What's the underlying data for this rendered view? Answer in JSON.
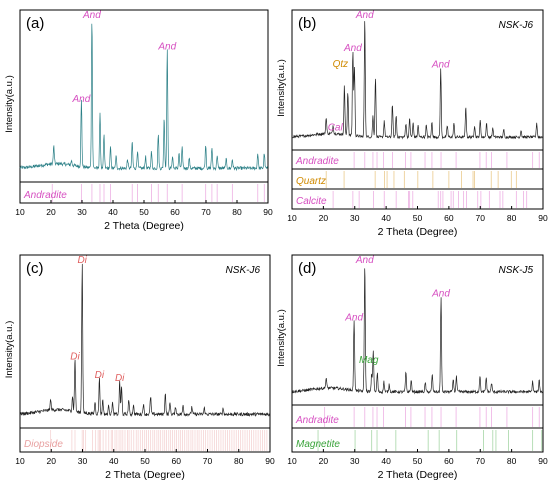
{
  "chart_data": [
    {
      "type": "line",
      "panel_label": "(a)",
      "sample": "",
      "xlabel": "2 Theta (Degree)",
      "ylabel": "Intensity(a.u.)",
      "xlim": [
        10,
        90
      ],
      "x_ticks": [
        10,
        20,
        30,
        40,
        50,
        60,
        70,
        80,
        90
      ],
      "pattern_color": "#2a7f86",
      "peaks": [
        {
          "x": 20.9,
          "y": 0.12
        },
        {
          "x": 26.6,
          "y": 0.03
        },
        {
          "x": 29.8,
          "y": 0.44
        },
        {
          "x": 33.2,
          "y": 1.0
        },
        {
          "x": 35.8,
          "y": 0.36
        },
        {
          "x": 37.1,
          "y": 0.22
        },
        {
          "x": 39.2,
          "y": 0.14
        },
        {
          "x": 41.0,
          "y": 0.08
        },
        {
          "x": 44.7,
          "y": 0.06
        },
        {
          "x": 46.2,
          "y": 0.18
        },
        {
          "x": 47.9,
          "y": 0.12
        },
        {
          "x": 50.5,
          "y": 0.08
        },
        {
          "x": 52.4,
          "y": 0.11
        },
        {
          "x": 54.6,
          "y": 0.23
        },
        {
          "x": 56.5,
          "y": 0.34
        },
        {
          "x": 57.5,
          "y": 0.79
        },
        {
          "x": 59.2,
          "y": 0.08
        },
        {
          "x": 61.3,
          "y": 0.1
        },
        {
          "x": 62.3,
          "y": 0.14
        },
        {
          "x": 64.6,
          "y": 0.07
        },
        {
          "x": 69.9,
          "y": 0.16
        },
        {
          "x": 71.9,
          "y": 0.14
        },
        {
          "x": 73.6,
          "y": 0.09
        },
        {
          "x": 76.5,
          "y": 0.06
        },
        {
          "x": 78.5,
          "y": 0.06
        },
        {
          "x": 86.7,
          "y": 0.1
        },
        {
          "x": 88.8,
          "y": 0.1
        }
      ],
      "annotations": [
        {
          "text": "And",
          "x": 29.8,
          "color": "#d64fc1"
        },
        {
          "text": "And",
          "x": 33.2,
          "color": "#d64fc1"
        },
        {
          "text": "And",
          "x": 57.5,
          "color": "#d64fc1"
        }
      ],
      "reference_phases": [
        {
          "name": "Andradite",
          "color": "#d64fc1",
          "lines": [
            20.4,
            29.8,
            33.2,
            35.8,
            37.1,
            39.2,
            46.2,
            47.9,
            52.4,
            54.6,
            57.5,
            62.3,
            69.9,
            71.9,
            73.6,
            78.5,
            86.7,
            88.8
          ]
        }
      ]
    },
    {
      "type": "line",
      "panel_label": "(b)",
      "sample": "NSK-J6",
      "xlabel": "2 Theta (Degree)",
      "ylabel": "Intensity(a.u.)",
      "xlim": [
        10,
        90
      ],
      "x_ticks": [
        10,
        20,
        30,
        40,
        50,
        60,
        70,
        80,
        90
      ],
      "pattern_color": "#222222",
      "peaks": [
        {
          "x": 20.9,
          "y": 0.14
        },
        {
          "x": 23.1,
          "y": 0.07
        },
        {
          "x": 26.7,
          "y": 0.42
        },
        {
          "x": 27.8,
          "y": 0.37
        },
        {
          "x": 29.4,
          "y": 0.72
        },
        {
          "x": 29.9,
          "y": 0.58
        },
        {
          "x": 33.2,
          "y": 1.0
        },
        {
          "x": 35.8,
          "y": 0.18
        },
        {
          "x": 36.6,
          "y": 0.5
        },
        {
          "x": 39.4,
          "y": 0.14
        },
        {
          "x": 42.0,
          "y": 0.28
        },
        {
          "x": 43.2,
          "y": 0.18
        },
        {
          "x": 46.3,
          "y": 0.12
        },
        {
          "x": 47.5,
          "y": 0.16
        },
        {
          "x": 48.6,
          "y": 0.12
        },
        {
          "x": 50.2,
          "y": 0.1
        },
        {
          "x": 52.8,
          "y": 0.1
        },
        {
          "x": 54.6,
          "y": 0.13
        },
        {
          "x": 57.4,
          "y": 0.58
        },
        {
          "x": 59.5,
          "y": 0.1
        },
        {
          "x": 61.6,
          "y": 0.12
        },
        {
          "x": 65.4,
          "y": 0.26
        },
        {
          "x": 68.2,
          "y": 0.1
        },
        {
          "x": 70.0,
          "y": 0.14
        },
        {
          "x": 72.0,
          "y": 0.12
        },
        {
          "x": 74.0,
          "y": 0.08
        },
        {
          "x": 77.5,
          "y": 0.06
        },
        {
          "x": 83.0,
          "y": 0.06
        },
        {
          "x": 88.0,
          "y": 0.12
        }
      ],
      "annotations": [
        {
          "text": "And",
          "x": 29.4,
          "color": "#d64fc1"
        },
        {
          "text": "And",
          "x": 33.2,
          "color": "#d64fc1"
        },
        {
          "text": "And",
          "x": 57.4,
          "color": "#d64fc1"
        },
        {
          "text": "Qtz",
          "x": 26.7,
          "color": "#d08a00"
        },
        {
          "text": "Cal",
          "x": 22.5,
          "color": "#d64fc1"
        }
      ],
      "reference_phases": [
        {
          "name": "Andradite",
          "color": "#d64fc1",
          "lines": [
            29.8,
            33.2,
            35.8,
            37.1,
            39.2,
            42.0,
            46.2,
            47.9,
            52.4,
            54.6,
            57.5,
            62.3,
            69.9,
            71.9,
            73.6,
            78.5,
            86.7,
            88.8
          ]
        },
        {
          "name": "Quartz",
          "color": "#d08a00",
          "lines": [
            20.9,
            26.6,
            36.5,
            39.5,
            40.3,
            42.5,
            45.8,
            50.1,
            54.9,
            60.0,
            64.0,
            67.7,
            68.2,
            73.5,
            75.7,
            79.9,
            81.5
          ]
        },
        {
          "name": "Calcite",
          "color": "#d64fc1",
          "lines": [
            23.1,
            29.4,
            31.4,
            36.0,
            39.4,
            43.2,
            47.1,
            47.5,
            48.5,
            56.6,
            57.4,
            58.1,
            60.7,
            61.4,
            63.1,
            64.7,
            65.6,
            69.2,
            70.2,
            72.9,
            76.3,
            77.2,
            81.5,
            83.8,
            84.8
          ]
        }
      ]
    },
    {
      "type": "line",
      "panel_label": "(c)",
      "sample": "NSK-J6",
      "xlabel": "2 Theta (Degree)",
      "ylabel": "Intensity(a.u.)",
      "xlim": [
        10,
        90
      ],
      "x_ticks": [
        10,
        20,
        30,
        40,
        50,
        60,
        70,
        80,
        90
      ],
      "pattern_color": "#222222",
      "peaks": [
        {
          "x": 19.8,
          "y": 0.07
        },
        {
          "x": 26.8,
          "y": 0.1
        },
        {
          "x": 27.6,
          "y": 0.36
        },
        {
          "x": 29.9,
          "y": 1.0
        },
        {
          "x": 34.0,
          "y": 0.08
        },
        {
          "x": 35.4,
          "y": 0.24
        },
        {
          "x": 36.5,
          "y": 0.1
        },
        {
          "x": 38.4,
          "y": 0.06
        },
        {
          "x": 39.6,
          "y": 0.08
        },
        {
          "x": 41.9,
          "y": 0.22
        },
        {
          "x": 42.5,
          "y": 0.18
        },
        {
          "x": 44.8,
          "y": 0.1
        },
        {
          "x": 46.3,
          "y": 0.06
        },
        {
          "x": 49.5,
          "y": 0.07
        },
        {
          "x": 51.8,
          "y": 0.12
        },
        {
          "x": 56.5,
          "y": 0.14
        },
        {
          "x": 58.0,
          "y": 0.08
        },
        {
          "x": 59.8,
          "y": 0.05
        },
        {
          "x": 62.2,
          "y": 0.06
        },
        {
          "x": 65.0,
          "y": 0.05
        },
        {
          "x": 69.0,
          "y": 0.04
        },
        {
          "x": 75.0,
          "y": 0.04
        }
      ],
      "annotations": [
        {
          "text": "Di",
          "x": 27.6,
          "color": "#e06060"
        },
        {
          "text": "Di",
          "x": 29.9,
          "color": "#e06060"
        },
        {
          "text": "Di",
          "x": 35.4,
          "color": "#e06060"
        },
        {
          "text": "Di",
          "x": 41.9,
          "color": "#e06060"
        }
      ],
      "reference_phases": [
        {
          "name": "Diopside",
          "color": "#e8a0a0",
          "lines": [
            19.8,
            26.6,
            27.6,
            29.9,
            30.3,
            31.0,
            33.2,
            34.2,
            35.0,
            35.4,
            35.8,
            36.6,
            37.5,
            38.4,
            39.2,
            39.6,
            40.4,
            41.0,
            41.7,
            42.3,
            42.9,
            43.6,
            44.4,
            44.9,
            45.6,
            46.4,
            47.2,
            47.8,
            48.5,
            49.2,
            49.9,
            50.5,
            51.1,
            51.8,
            52.5,
            53.1,
            53.8,
            54.4,
            55.0,
            55.7,
            56.3,
            56.9,
            57.6,
            58.2,
            58.8,
            59.5,
            60.1,
            60.8,
            61.4,
            62.0,
            62.7,
            63.4,
            64.0,
            64.7,
            65.3,
            66.0,
            66.7,
            67.3,
            68.0,
            68.7,
            69.4,
            70.1,
            70.8,
            71.5,
            72.2,
            72.9,
            73.6,
            74.3,
            75.0,
            75.7,
            76.4,
            77.1,
            77.8,
            78.5,
            79.2,
            79.9,
            80.6,
            81.3,
            82.0,
            82.7,
            83.4,
            84.1,
            84.8,
            85.5,
            86.2,
            86.9,
            87.6,
            88.3,
            89.0
          ]
        }
      ]
    },
    {
      "type": "line",
      "panel_label": "(d)",
      "sample": "NSK-J5",
      "xlabel": "2 Theta (Degree)",
      "ylabel": "Intensity(a.u.)",
      "xlim": [
        10,
        90
      ],
      "x_ticks": [
        10,
        20,
        30,
        40,
        50,
        60,
        70,
        80,
        90
      ],
      "pattern_color": "#222222",
      "peaks": [
        {
          "x": 20.9,
          "y": 0.08
        },
        {
          "x": 29.8,
          "y": 0.55
        },
        {
          "x": 33.2,
          "y": 1.0
        },
        {
          "x": 35.4,
          "y": 0.14
        },
        {
          "x": 35.9,
          "y": 0.32
        },
        {
          "x": 37.2,
          "y": 0.15
        },
        {
          "x": 39.3,
          "y": 0.08
        },
        {
          "x": 41.0,
          "y": 0.06
        },
        {
          "x": 46.3,
          "y": 0.15
        },
        {
          "x": 48.0,
          "y": 0.09
        },
        {
          "x": 52.5,
          "y": 0.07
        },
        {
          "x": 54.7,
          "y": 0.14
        },
        {
          "x": 57.5,
          "y": 0.74
        },
        {
          "x": 61.4,
          "y": 0.1
        },
        {
          "x": 62.4,
          "y": 0.12
        },
        {
          "x": 69.9,
          "y": 0.13
        },
        {
          "x": 71.9,
          "y": 0.11
        },
        {
          "x": 73.6,
          "y": 0.07
        },
        {
          "x": 86.7,
          "y": 0.08
        },
        {
          "x": 88.8,
          "y": 0.09
        }
      ],
      "annotations": [
        {
          "text": "And",
          "x": 29.8,
          "color": "#d64fc1"
        },
        {
          "text": "And",
          "x": 33.2,
          "color": "#d64fc1"
        },
        {
          "text": "And",
          "x": 57.5,
          "color": "#d64fc1"
        },
        {
          "text": "Mag",
          "x": 35.4,
          "color": "#3aa33a"
        }
      ],
      "reference_phases": [
        {
          "name": "Andradite",
          "color": "#d64fc1",
          "lines": [
            20.4,
            29.8,
            33.2,
            35.8,
            37.1,
            39.2,
            46.2,
            47.9,
            52.4,
            54.6,
            57.5,
            62.3,
            69.9,
            71.9,
            73.6,
            78.5,
            86.7,
            88.8
          ]
        },
        {
          "name": "Magnetite",
          "color": "#3aa33a",
          "lines": [
            18.3,
            30.1,
            35.4,
            37.1,
            43.1,
            53.4,
            56.9,
            62.5,
            71.0,
            74.0,
            75.0,
            79.0,
            86.7,
            89.6
          ]
        }
      ]
    }
  ]
}
